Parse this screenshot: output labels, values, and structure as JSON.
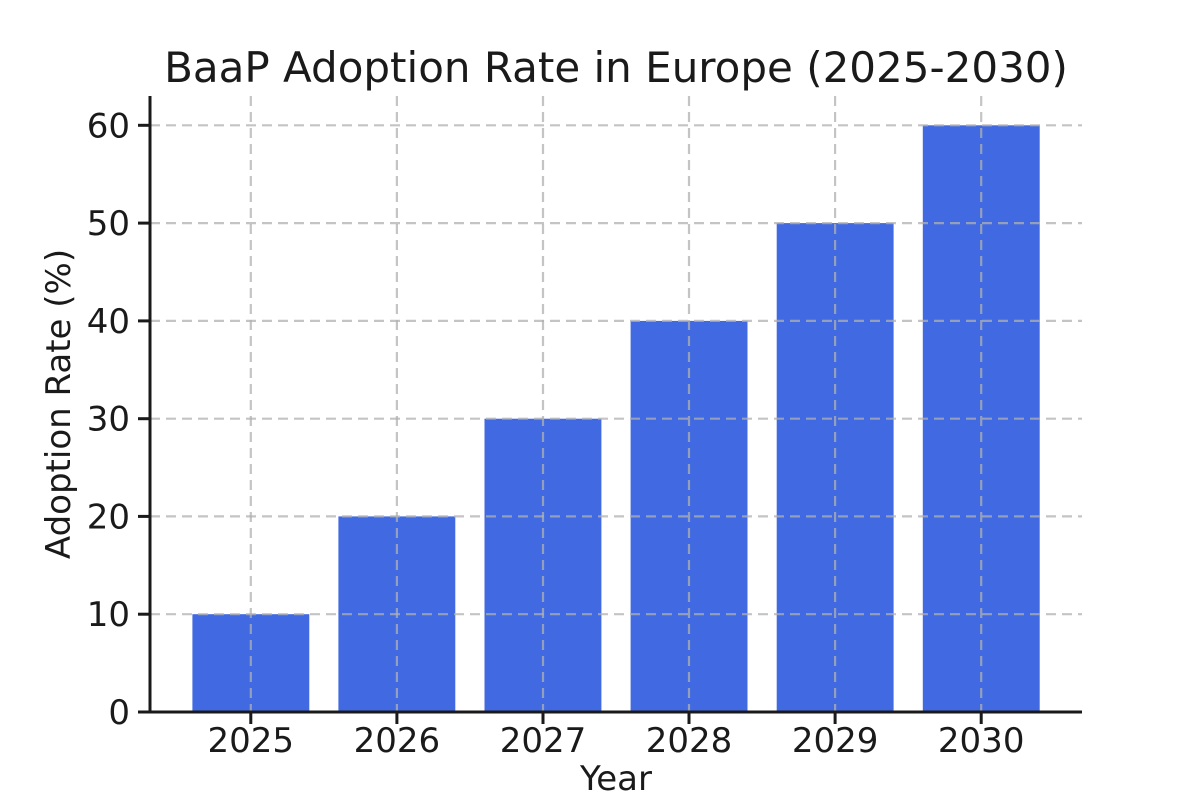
{
  "figure": {
    "background_color": "#ffffff"
  },
  "chart_data": {
    "type": "bar",
    "title": "BaaP Adoption Rate in Europe (2025-2030)",
    "xlabel": "Year",
    "ylabel": "Adoption Rate (%)",
    "categories": [
      "2025",
      "2026",
      "2027",
      "2028",
      "2029",
      "2030"
    ],
    "values": [
      10,
      20,
      30,
      40,
      50,
      60
    ],
    "yticks": [
      0,
      10,
      20,
      30,
      40,
      50,
      60
    ],
    "ylim": [
      0,
      63
    ],
    "grid": "both-dashed-above-bars",
    "legend_position": "none",
    "bar_color": "#4169E1",
    "text_color": "#1a1a1a",
    "axis_color": "#1a1a1a",
    "grid_color": "#b0b0b0"
  }
}
